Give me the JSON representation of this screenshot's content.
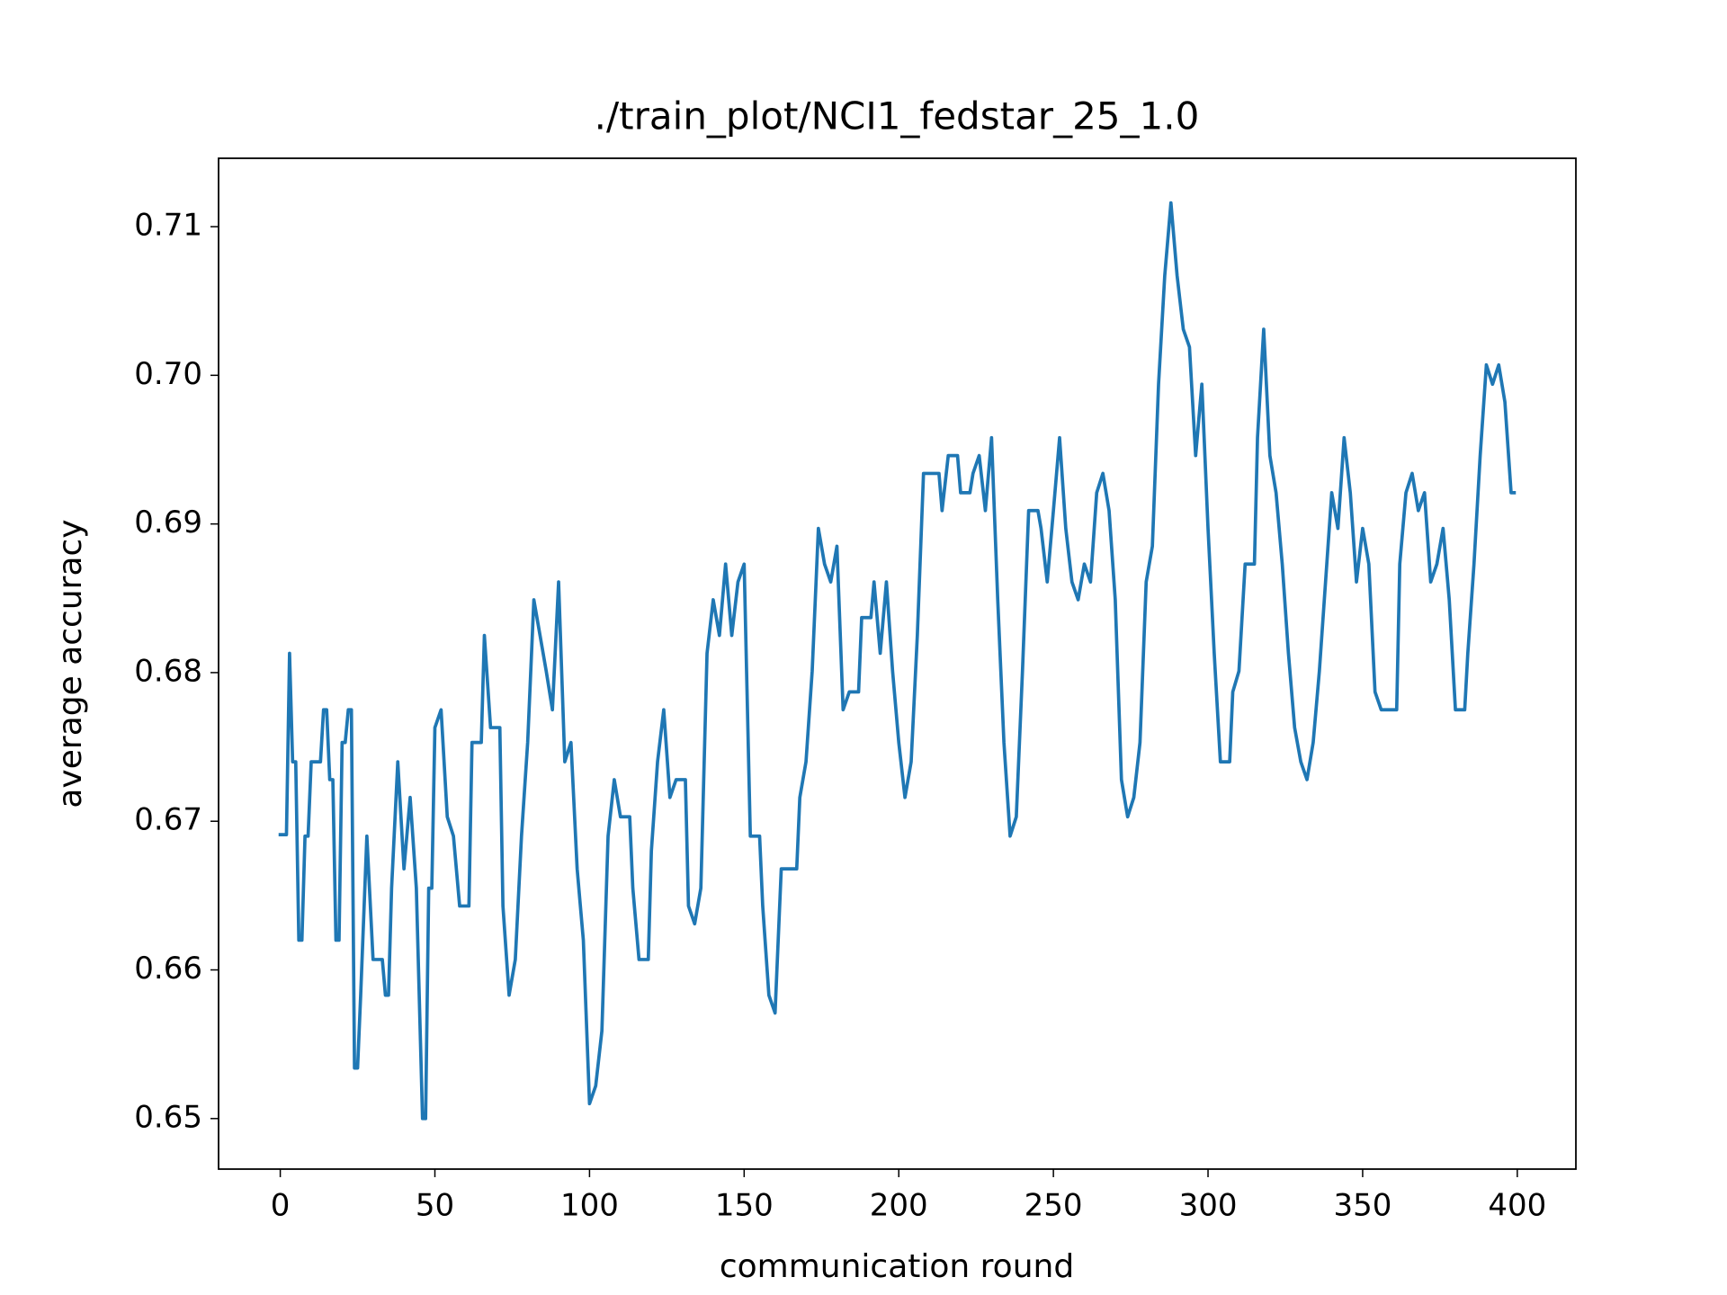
{
  "chart_data": {
    "type": "line",
    "title": "./train_plot/NCI1_fedstar_25_1.0",
    "x_label": "communication round",
    "y_label": "average accuracy",
    "color": "#1f77b4",
    "xlim": [
      -19.95,
      418.95
    ],
    "ylim": [
      0.6466,
      0.7146
    ],
    "xticks": [
      0,
      50,
      100,
      150,
      200,
      250,
      300,
      350,
      400
    ],
    "yticks": [
      0.65,
      0.66,
      0.67,
      0.68,
      0.69,
      {
        "value": 0.7,
        "label": "0.70"
      },
      0.71
    ],
    "x": [
      0,
      2,
      3,
      4,
      5,
      6,
      7,
      8,
      9,
      10,
      13,
      14,
      15,
      16,
      17,
      18,
      19,
      20,
      21,
      22,
      23,
      24,
      25,
      26,
      28,
      30,
      33,
      34,
      35,
      36,
      38,
      40,
      42,
      44,
      46,
      47,
      48,
      49,
      50,
      52,
      54,
      56,
      58,
      61,
      62,
      65,
      66,
      68,
      71,
      72,
      74,
      76,
      78,
      80,
      82,
      84,
      86,
      88,
      90,
      92,
      94,
      96,
      98,
      100,
      102,
      104,
      106,
      108,
      110,
      113,
      114,
      116,
      119,
      120,
      122,
      124,
      126,
      128,
      131,
      132,
      134,
      136,
      138,
      140,
      142,
      144,
      146,
      148,
      150,
      152,
      155,
      156,
      158,
      160,
      162,
      167,
      168,
      170,
      172,
      174,
      176,
      178,
      180,
      182,
      184,
      187,
      188,
      191,
      192,
      194,
      196,
      198,
      200,
      202,
      204,
      206,
      208,
      213,
      214,
      216,
      219,
      220,
      223,
      224,
      226,
      228,
      230,
      232,
      234,
      236,
      238,
      240,
      242,
      245,
      246,
      248,
      250,
      252,
      254,
      256,
      258,
      260,
      262,
      264,
      266,
      268,
      270,
      272,
      274,
      276,
      278,
      280,
      282,
      284,
      286,
      288,
      290,
      292,
      294,
      296,
      298,
      300,
      302,
      304,
      307,
      308,
      310,
      312,
      315,
      316,
      318,
      320,
      322,
      324,
      326,
      328,
      330,
      332,
      334,
      336,
      338,
      340,
      342,
      344,
      346,
      348,
      350,
      352,
      354,
      356,
      361,
      362,
      364,
      366,
      368,
      370,
      372,
      374,
      376,
      378,
      380,
      383,
      384,
      386,
      388,
      390,
      392,
      394,
      396,
      398,
      399
    ],
    "values": [
      0.6691,
      0.6691,
      0.6813,
      0.674,
      0.674,
      0.662,
      0.662,
      0.669,
      0.669,
      0.674,
      0.674,
      0.6775,
      0.6775,
      0.6728,
      0.6728,
      0.662,
      0.662,
      0.6753,
      0.6753,
      0.6775,
      0.6775,
      0.6534,
      0.6534,
      0.6583,
      0.669,
      0.6607,
      0.6607,
      0.6583,
      0.6583,
      0.6655,
      0.674,
      0.6668,
      0.6716,
      0.6655,
      0.65,
      0.65,
      0.6655,
      0.6655,
      0.6763,
      0.6775,
      0.6703,
      0.669,
      0.6643,
      0.6643,
      0.6753,
      0.6753,
      0.6825,
      0.6763,
      0.6763,
      0.6643,
      0.6583,
      0.6607,
      0.669,
      0.6753,
      0.6849,
      0.6825,
      0.6801,
      0.6775,
      0.6861,
      0.674,
      0.6753,
      0.6668,
      0.662,
      0.651,
      0.6522,
      0.6559,
      0.669,
      0.6728,
      0.6703,
      0.6703,
      0.6655,
      0.6607,
      0.6607,
      0.668,
      0.674,
      0.6775,
      0.6716,
      0.6728,
      0.6728,
      0.6643,
      0.6631,
      0.6655,
      0.6813,
      0.6849,
      0.6825,
      0.6873,
      0.6825,
      0.6861,
      0.6873,
      0.669,
      0.669,
      0.6643,
      0.6583,
      0.6571,
      0.6668,
      0.6668,
      0.6716,
      0.674,
      0.6801,
      0.6897,
      0.6873,
      0.6861,
      0.6885,
      0.6775,
      0.6787,
      0.6787,
      0.6837,
      0.6837,
      0.6861,
      0.6813,
      0.6861,
      0.6801,
      0.6753,
      0.6716,
      0.674,
      0.6825,
      0.6934,
      0.6934,
      0.6909,
      0.6946,
      0.6946,
      0.6921,
      0.6921,
      0.6934,
      0.6946,
      0.6909,
      0.6958,
      0.6849,
      0.6753,
      0.669,
      0.6703,
      0.6801,
      0.6909,
      0.6909,
      0.6897,
      0.6861,
      0.6909,
      0.6958,
      0.6897,
      0.6861,
      0.6849,
      0.6873,
      0.6861,
      0.6921,
      0.6934,
      0.6909,
      0.6849,
      0.6728,
      0.6703,
      0.6716,
      0.6753,
      0.6861,
      0.6885,
      0.6994,
      0.7067,
      0.7116,
      0.7067,
      0.7031,
      0.7019,
      0.6946,
      0.6994,
      0.6897,
      0.6813,
      0.674,
      0.674,
      0.6787,
      0.6801,
      0.6873,
      0.6873,
      0.6958,
      0.7031,
      0.6946,
      0.6921,
      0.6873,
      0.6813,
      0.6763,
      0.674,
      0.6728,
      0.6753,
      0.6801,
      0.6861,
      0.6921,
      0.6897,
      0.6958,
      0.6921,
      0.6861,
      0.6897,
      0.6873,
      0.6787,
      0.6775,
      0.6775,
      0.6873,
      0.6921,
      0.6934,
      0.6909,
      0.6921,
      0.6861,
      0.6873,
      0.6897,
      0.6849,
      0.6775,
      0.6775,
      0.6813,
      0.6873,
      0.6946,
      0.7007,
      0.6994,
      0.7007,
      0.6982,
      0.6921,
      0.6921
    ]
  }
}
